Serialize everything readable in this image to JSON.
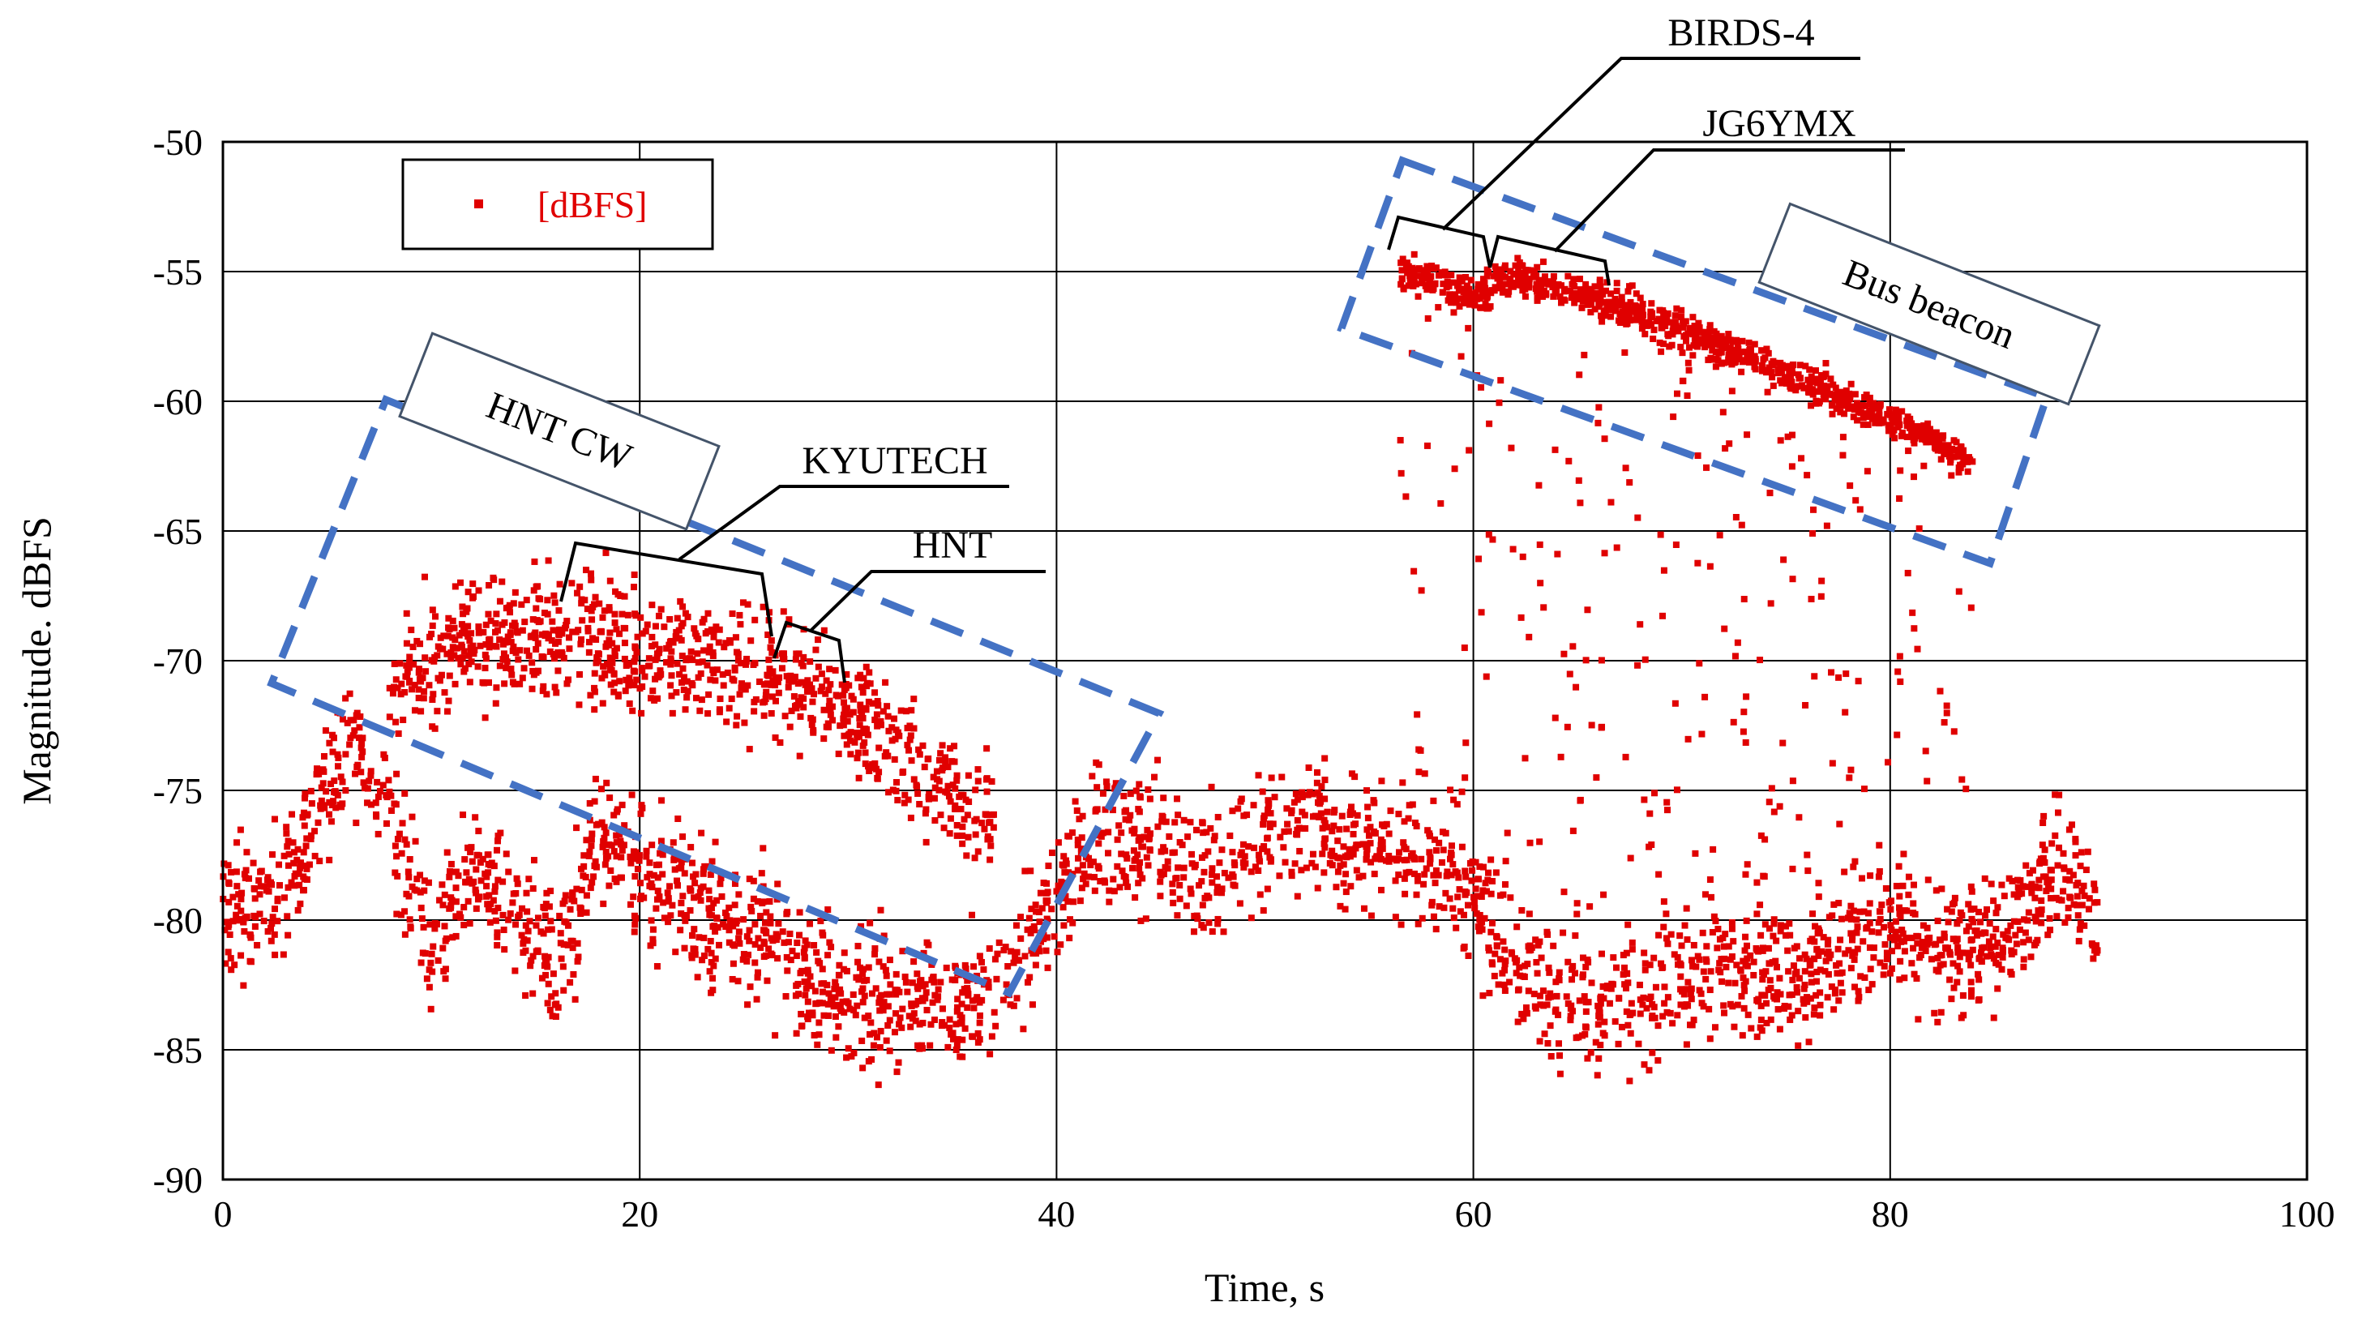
{
  "chart_data": {
    "type": "scatter",
    "xlabel": "Time, s",
    "ylabel": "Magnitude. dBFS",
    "xlim": [
      0,
      100
    ],
    "ylim": [
      -90,
      -50
    ],
    "xticks": [
      0,
      20,
      40,
      60,
      80,
      100
    ],
    "yticks": [
      -50,
      -55,
      -60,
      -65,
      -70,
      -75,
      -80,
      -85,
      -90
    ],
    "xtick_labels": [
      "0",
      "20",
      "40",
      "60",
      "80",
      "100"
    ],
    "ytick_labels": [
      "-50",
      "-55",
      "-60",
      "-65",
      "-70",
      "-75",
      "-80",
      "-85",
      "-90"
    ],
    "grid": true,
    "legend_position": "top-left",
    "series": [
      {
        "name": "[dBFS]",
        "color": "#e00000",
        "marker": "square",
        "approx_envelope": {
          "x": [
            0,
            2,
            4,
            6,
            8,
            10,
            12,
            14,
            16,
            18,
            20,
            22,
            24,
            26,
            28,
            30,
            32,
            34,
            36,
            38,
            40,
            42,
            44,
            46,
            48,
            50,
            52,
            54,
            56,
            58,
            60,
            62,
            64,
            66,
            68,
            70,
            72,
            74,
            76,
            78,
            80,
            82,
            84,
            86,
            88,
            90
          ],
          "baseline_y": [
            -79,
            -80,
            -77,
            -73,
            -76,
            -81,
            -78,
            -80,
            -82,
            -77,
            -78,
            -79,
            -80,
            -81,
            -82,
            -83,
            -83,
            -83,
            -83,
            -82,
            -79,
            -77,
            -77,
            -78,
            -78,
            -77,
            -76,
            -77,
            -77,
            -78,
            -79,
            -82,
            -83,
            -83,
            -83,
            -82,
            -82,
            -82,
            -82,
            -81,
            -80,
            -81,
            -81,
            -80,
            -78,
            -80
          ]
        },
        "signal_bands": [
          {
            "x": [
              8,
              12,
              16,
              20,
              24,
              28,
              32,
              36
            ],
            "y": [
              -71,
              -69,
              -69,
              -69.5,
              -70,
              -71,
              -73,
              -76
            ]
          },
          {
            "x": [
              56.5,
              60,
              62,
              66,
              70,
              74,
              78,
              82,
              84
            ],
            "y": [
              -55,
              -56,
              -55.2,
              -56,
              -57.3,
              -58.5,
              -60,
              -61.5,
              -62.5
            ]
          }
        ]
      }
    ],
    "annotations": [
      "HNT CW",
      "KYUTECH",
      "HNT",
      "BIRDS-4",
      "JG6YMX",
      "Bus beacon"
    ]
  },
  "colors": {
    "points": "#e00000",
    "dashed_box": "#4472c4",
    "grid": "#000000"
  }
}
